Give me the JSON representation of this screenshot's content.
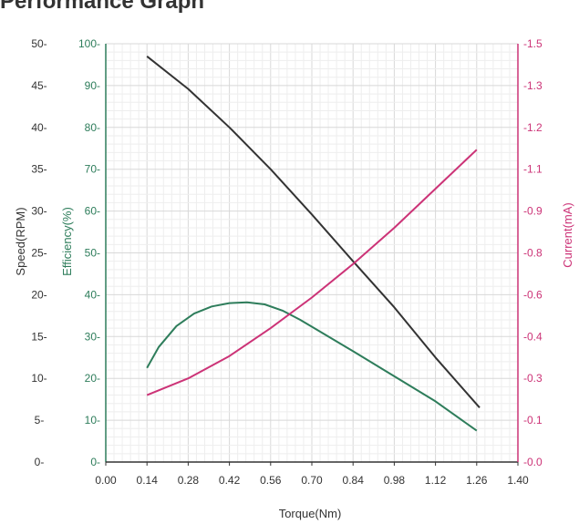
{
  "title": "Performance Graph",
  "chart_data": {
    "type": "line",
    "title": "Performance Graph",
    "xlabel": "Torque(Nm)",
    "xlim": [
      0,
      1.4
    ],
    "x_ticks": [
      "0.00",
      "0.14",
      "0.28",
      "0.42",
      "0.56",
      "0.70",
      "0.84",
      "0.98",
      "1.12",
      "1.26",
      "1.40"
    ],
    "grid": true,
    "axes": {
      "speed": {
        "label": "Speed(RPM)",
        "side": "left-outer",
        "ylim": [
          0,
          50
        ],
        "ticks": [
          0,
          5,
          10,
          15,
          20,
          25,
          30,
          35,
          40,
          45,
          50
        ],
        "color": "#333333"
      },
      "efficiency": {
        "label": "Efficiency(%)",
        "side": "left-inner",
        "ylim": [
          0,
          100
        ],
        "ticks": [
          0,
          10,
          20,
          30,
          40,
          50,
          60,
          70,
          80,
          90,
          100
        ],
        "color": "#2e7d5b"
      },
      "current": {
        "label": "Current(mA)",
        "side": "right",
        "ylim": [
          0,
          1.5
        ],
        "ticks": [
          "0.0",
          "0.1",
          "0.3",
          "0.4",
          "0.6",
          "0.8",
          "0.9",
          "1.1",
          "1.2",
          "1.3",
          "1.5"
        ],
        "color": "#cc3377"
      }
    },
    "series": [
      {
        "axis": "speed",
        "color": "#333333",
        "x": [
          0.14,
          0.28,
          0.42,
          0.56,
          0.7,
          0.84,
          0.98,
          1.12,
          1.27
        ],
        "y": [
          48.5,
          44.6,
          40.0,
          35.0,
          29.6,
          24.0,
          18.5,
          12.5,
          6.5
        ]
      },
      {
        "axis": "efficiency",
        "color": "#2e7d5b",
        "x": [
          0.14,
          0.18,
          0.24,
          0.3,
          0.36,
          0.42,
          0.48,
          0.54,
          0.6,
          0.66,
          0.72,
          0.84,
          0.98,
          1.12,
          1.26
        ],
        "y": [
          22.5,
          27.5,
          32.5,
          35.5,
          37.2,
          38.0,
          38.2,
          37.7,
          36.2,
          34.0,
          31.5,
          26.5,
          20.5,
          14.5,
          7.5
        ]
      },
      {
        "axis": "current",
        "color": "#cc3377",
        "x": [
          0.14,
          0.28,
          0.42,
          0.56,
          0.7,
          0.84,
          0.98,
          1.12,
          1.26
        ],
        "y": [
          0.24,
          0.3,
          0.38,
          0.48,
          0.59,
          0.71,
          0.84,
          0.98,
          1.12
        ]
      }
    ]
  }
}
